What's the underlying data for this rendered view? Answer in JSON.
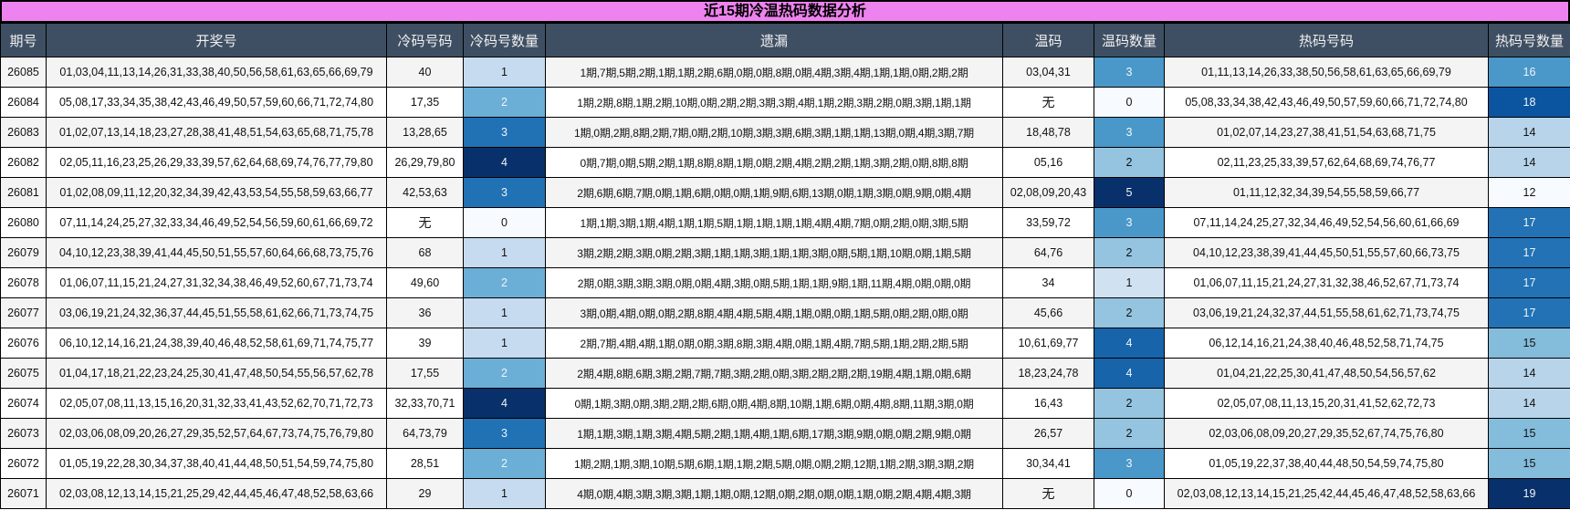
{
  "title": "近15期冷温热码数据分析",
  "headers": [
    "期号",
    "开奖号",
    "冷码号码",
    "冷码号数量",
    "遗漏",
    "温码",
    "温码数量",
    "热码号码",
    "热码号数量"
  ],
  "colors": {
    "title_bg": "#ee82ee",
    "header_bg": "#3f4f63",
    "cold_count": {
      "0": "#f7fbff",
      "1": "#c6dbef",
      "2": "#6baed6",
      "3": "#2171b5",
      "4": "#08306b"
    },
    "warm_count": {
      "0": "#f7fbff",
      "1": "#d0e1f2",
      "2": "#94c4df",
      "3": "#4a98c9",
      "4": "#1764ab",
      "5": "#08306b"
    },
    "hot_count": {
      "12": "#f7fbff",
      "14": "#b7d4ea",
      "15": "#84bcdb",
      "16": "#4a98c9",
      "17": "#2272b5",
      "18": "#0b55a0",
      "19": "#08306b"
    }
  },
  "rows": [
    {
      "period": "26085",
      "draw": "01,03,04,11,13,14,26,31,33,38,40,50,56,58,61,63,65,66,69,79",
      "cold": "40",
      "cold_count": "1",
      "missing": "1期,7期,5期,2期,1期,1期,2期,6期,0期,0期,8期,0期,4期,3期,4期,1期,1期,0期,2期,2期",
      "warm": "03,04,31",
      "warm_count": "3",
      "hot": "01,11,13,14,26,33,38,50,56,58,61,63,65,66,69,79",
      "hot_count": "16"
    },
    {
      "period": "26084",
      "draw": "05,08,17,33,34,35,38,42,43,46,49,50,57,59,60,66,71,72,74,80",
      "cold": "17,35",
      "cold_count": "2",
      "missing": "1期,2期,8期,1期,2期,10期,0期,2期,2期,3期,3期,4期,1期,2期,3期,2期,0期,3期,1期,1期",
      "warm": "无",
      "warm_count": "0",
      "hot": "05,08,33,34,38,42,43,46,49,50,57,59,60,66,71,72,74,80",
      "hot_count": "18"
    },
    {
      "period": "26083",
      "draw": "01,02,07,13,14,18,23,27,28,38,41,48,51,54,63,65,68,71,75,78",
      "cold": "13,28,65",
      "cold_count": "3",
      "missing": "1期,0期,2期,8期,2期,7期,0期,2期,10期,3期,3期,6期,3期,1期,1期,13期,0期,4期,3期,7期",
      "warm": "18,48,78",
      "warm_count": "3",
      "hot": "01,02,07,14,23,27,38,41,51,54,63,68,71,75",
      "hot_count": "14"
    },
    {
      "period": "26082",
      "draw": "02,05,11,16,23,25,26,29,33,39,57,62,64,68,69,74,76,77,79,80",
      "cold": "26,29,79,80",
      "cold_count": "4",
      "missing": "0期,7期,0期,5期,2期,1期,8期,8期,1期,0期,2期,4期,2期,2期,1期,3期,2期,0期,8期,8期",
      "warm": "05,16",
      "warm_count": "2",
      "hot": "02,11,23,25,33,39,57,62,64,68,69,74,76,77",
      "hot_count": "14"
    },
    {
      "period": "26081",
      "draw": "01,02,08,09,11,12,20,32,34,39,42,43,53,54,55,58,59,63,66,77",
      "cold": "42,53,63",
      "cold_count": "3",
      "missing": "2期,6期,6期,7期,0期,1期,6期,0期,0期,1期,9期,6期,13期,0期,1期,3期,0期,9期,0期,4期",
      "warm": "02,08,09,20,43",
      "warm_count": "5",
      "hot": "01,11,12,32,34,39,54,55,58,59,66,77",
      "hot_count": "12"
    },
    {
      "period": "26080",
      "draw": "07,11,14,24,25,27,32,33,34,46,49,52,54,56,59,60,61,66,69,72",
      "cold": "无",
      "cold_count": "0",
      "missing": "1期,1期,3期,1期,4期,1期,1期,5期,1期,1期,1期,1期,4期,4期,7期,0期,2期,0期,3期,5期",
      "warm": "33,59,72",
      "warm_count": "3",
      "hot": "07,11,14,24,25,27,32,34,46,49,52,54,56,60,61,66,69",
      "hot_count": "17"
    },
    {
      "period": "26079",
      "draw": "04,10,12,23,38,39,41,44,45,50,51,55,57,60,64,66,68,73,75,76",
      "cold": "68",
      "cold_count": "1",
      "missing": "3期,2期,2期,3期,0期,2期,3期,1期,1期,3期,1期,1期,3期,0期,5期,1期,10期,0期,1期,5期",
      "warm": "64,76",
      "warm_count": "2",
      "hot": "04,10,12,23,38,39,41,44,45,50,51,55,57,60,66,73,75",
      "hot_count": "17"
    },
    {
      "period": "26078",
      "draw": "01,06,07,11,15,21,24,27,31,32,34,38,46,49,52,60,67,71,73,74",
      "cold": "49,60",
      "cold_count": "2",
      "missing": "2期,0期,3期,3期,3期,0期,0期,4期,3期,0期,5期,1期,1期,9期,1期,11期,4期,0期,0期,0期",
      "warm": "34",
      "warm_count": "1",
      "hot": "01,06,07,11,15,21,24,27,31,32,38,46,52,67,71,73,74",
      "hot_count": "17"
    },
    {
      "period": "26077",
      "draw": "03,06,19,21,24,32,36,37,44,45,51,55,58,61,62,66,71,73,74,75",
      "cold": "36",
      "cold_count": "1",
      "missing": "3期,0期,4期,0期,0期,2期,8期,4期,4期,5期,4期,1期,0期,0期,1期,5期,0期,2期,0期,0期",
      "warm": "45,66",
      "warm_count": "2",
      "hot": "03,06,19,21,24,32,37,44,51,55,58,61,62,71,73,74,75",
      "hot_count": "17"
    },
    {
      "period": "26076",
      "draw": "06,10,12,14,16,21,24,38,39,40,46,48,52,58,61,69,71,74,75,77",
      "cold": "39",
      "cold_count": "1",
      "missing": "2期,7期,4期,4期,1期,0期,0期,3期,8期,3期,4期,0期,1期,4期,7期,5期,1期,2期,2期,5期",
      "warm": "10,61,69,77",
      "warm_count": "4",
      "hot": "06,12,14,16,21,24,38,40,46,48,52,58,71,74,75",
      "hot_count": "15"
    },
    {
      "period": "26075",
      "draw": "01,04,17,18,21,22,23,24,25,30,41,47,48,50,54,55,56,57,62,78",
      "cold": "17,55",
      "cold_count": "2",
      "missing": "2期,4期,8期,6期,3期,2期,7期,7期,3期,2期,0期,3期,2期,2期,2期,19期,4期,1期,0期,6期",
      "warm": "18,23,24,78",
      "warm_count": "4",
      "hot": "01,04,21,22,25,30,41,47,48,50,54,56,57,62",
      "hot_count": "14"
    },
    {
      "period": "26074",
      "draw": "02,05,07,08,11,13,15,16,20,31,32,33,41,43,52,62,70,71,72,73",
      "cold": "32,33,70,71",
      "cold_count": "4",
      "missing": "0期,1期,3期,0期,3期,2期,2期,6期,0期,4期,8期,10期,1期,6期,0期,4期,8期,11期,3期,0期",
      "warm": "16,43",
      "warm_count": "2",
      "hot": "02,05,07,08,11,13,15,20,31,41,52,62,72,73",
      "hot_count": "14"
    },
    {
      "period": "26073",
      "draw": "02,03,06,08,09,20,26,27,29,35,52,57,64,67,73,74,75,76,79,80",
      "cold": "64,73,79",
      "cold_count": "3",
      "missing": "1期,1期,3期,1期,3期,4期,5期,2期,1期,4期,1期,6期,17期,3期,9期,0期,0期,2期,9期,0期",
      "warm": "26,57",
      "warm_count": "2",
      "hot": "02,03,06,08,09,20,27,29,35,52,67,74,75,76,80",
      "hot_count": "15"
    },
    {
      "period": "26072",
      "draw": "01,05,19,22,28,30,34,37,38,40,41,44,48,50,51,54,59,74,75,80",
      "cold": "28,51",
      "cold_count": "2",
      "missing": "1期,2期,1期,3期,10期,5期,6期,1期,1期,2期,5期,0期,0期,2期,12期,1期,2期,3期,3期,2期",
      "warm": "30,34,41",
      "warm_count": "3",
      "hot": "01,05,19,22,37,38,40,44,48,50,54,59,74,75,80",
      "hot_count": "15"
    },
    {
      "period": "26071",
      "draw": "02,03,08,12,13,14,15,21,25,29,42,44,45,46,47,48,52,58,63,66",
      "cold": "29",
      "cold_count": "1",
      "missing": "4期,0期,4期,3期,3期,3期,1期,1期,0期,12期,0期,2期,0期,0期,1期,0期,2期,4期,4期,3期",
      "warm": "无",
      "warm_count": "0",
      "hot": "02,03,08,12,13,14,15,21,25,42,44,45,46,47,48,52,58,63,66",
      "hot_count": "19"
    }
  ]
}
